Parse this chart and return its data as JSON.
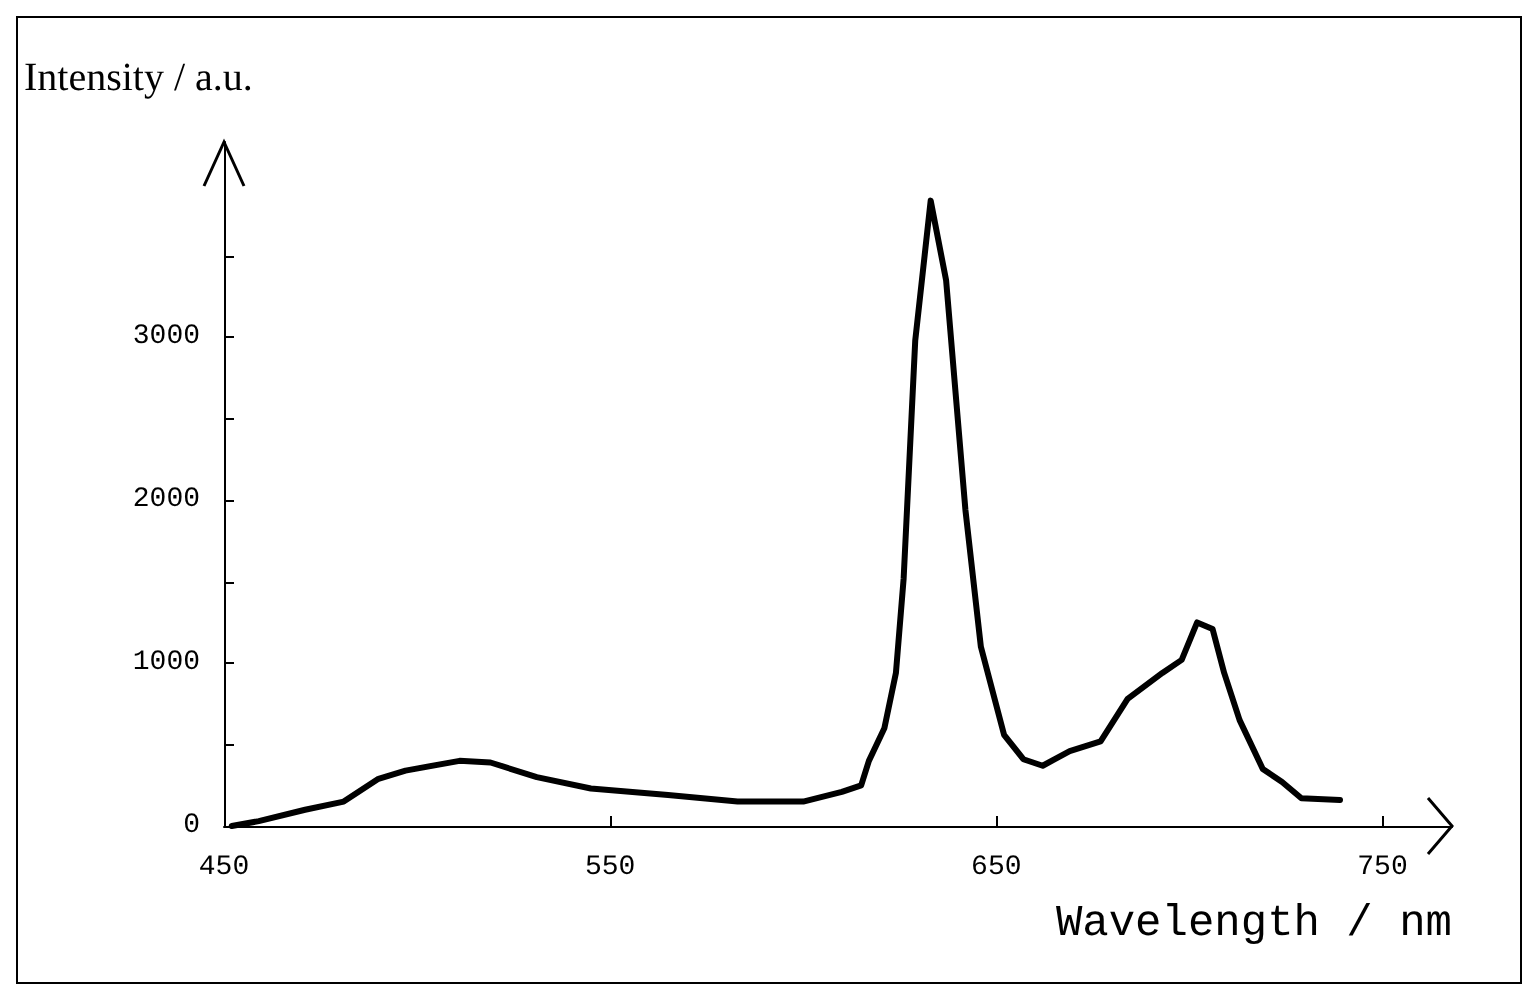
{
  "chart_data": {
    "type": "line",
    "xlabel": "Wavelength / nm",
    "ylabel": "Intensity / a.u.",
    "color": "#000000",
    "marker": "none",
    "line_style": "solid",
    "grid": false,
    "xlim": [
      450,
      768
    ],
    "ylim": [
      0,
      4200
    ],
    "xticks": [
      450,
      550,
      650,
      750
    ],
    "yticks": [
      0,
      {
        "value": 500,
        "label": null
      },
      1000,
      {
        "value": 1500,
        "label": null
      },
      2000,
      {
        "value": 2500,
        "label": null
      },
      3000,
      {
        "value": 3500,
        "label": null
      }
    ],
    "x": [
      452,
      459,
      471,
      481,
      490,
      497,
      511,
      519,
      531,
      545,
      565,
      583,
      600,
      610,
      615,
      617,
      621,
      624,
      626,
      629,
      633,
      637,
      642,
      646,
      652,
      657,
      662,
      669,
      677,
      684,
      693,
      698,
      702,
      706,
      709,
      713,
      719,
      724,
      729,
      739
    ],
    "values": [
      0,
      30,
      100,
      150,
      290,
      340,
      400,
      390,
      300,
      230,
      190,
      150,
      150,
      210,
      250,
      400,
      600,
      940,
      1520,
      2980,
      3840,
      3350,
      1940,
      1100,
      560,
      410,
      370,
      460,
      520,
      780,
      940,
      1020,
      1250,
      1210,
      940,
      650,
      350,
      270,
      170,
      160
    ]
  }
}
